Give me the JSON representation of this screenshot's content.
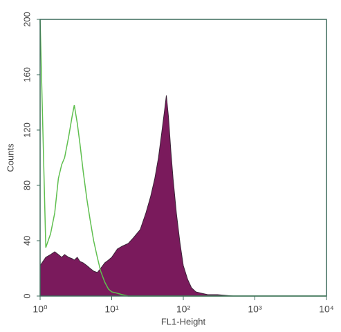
{
  "chart_data": {
    "type": "area",
    "xscale": "log",
    "xlabel": "FL1-Height",
    "ylabel": "Counts",
    "x": [
      1,
      1.2,
      1.4,
      1.6,
      1.8,
      2,
      2.2,
      2.5,
      2.8,
      3,
      3.3,
      3.6,
      4,
      4.5,
      5,
      5.6,
      6.3,
      7,
      8,
      9,
      10,
      12,
      14,
      17,
      20,
      25,
      30,
      35,
      40,
      45,
      50,
      55,
      58,
      62,
      67,
      72,
      80,
      90,
      100,
      115,
      130,
      150,
      180,
      220,
      300,
      500,
      1000,
      2000,
      5000,
      10000
    ],
    "series": [
      {
        "color": "#7a1a5c",
        "fill": true,
        "values": [
          22,
          28,
          30,
          32,
          30,
          28,
          30,
          28,
          27,
          26,
          28,
          25,
          24,
          22,
          20,
          18,
          17,
          20,
          24,
          26,
          28,
          34,
          36,
          38,
          42,
          48,
          60,
          72,
          85,
          100,
          118,
          135,
          145,
          130,
          105,
          85,
          60,
          38,
          22,
          12,
          6,
          3,
          2,
          1,
          1,
          0,
          0,
          0,
          0,
          0
        ]
      },
      {
        "color": "#5fbf4f",
        "fill": false,
        "values": [
          200,
          35,
          45,
          60,
          85,
          95,
          100,
          115,
          130,
          138,
          125,
          110,
          90,
          70,
          55,
          40,
          28,
          18,
          10,
          5,
          3,
          2,
          1,
          0,
          0,
          0,
          0,
          0,
          0,
          0,
          0,
          0,
          0,
          0,
          0,
          0,
          0,
          0,
          0,
          0,
          0,
          0,
          0,
          0,
          0,
          0,
          0,
          0,
          0,
          0
        ]
      }
    ],
    "xlim": [
      1,
      10000
    ],
    "xticks": [
      {
        "value": 1,
        "label": "10⁰"
      },
      {
        "value": 10,
        "label": "10¹"
      },
      {
        "value": 100,
        "label": "10²"
      },
      {
        "value": 1000,
        "label": "10³"
      },
      {
        "value": 10000,
        "label": "10⁴"
      }
    ],
    "ylim": [
      0,
      200
    ],
    "yticks": [
      0,
      40,
      80,
      120,
      160,
      200
    ],
    "axis_color": "#3d6b5c"
  }
}
